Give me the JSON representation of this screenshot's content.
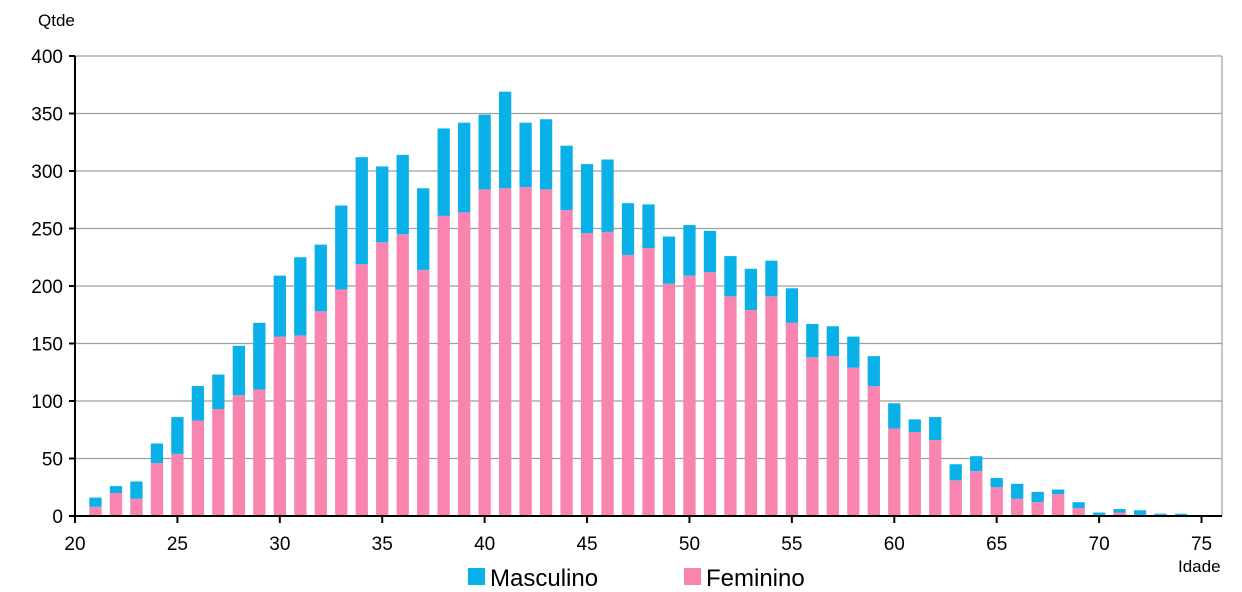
{
  "chart_data": {
    "type": "bar",
    "stacked": true,
    "title": "",
    "xlabel": "Idade",
    "ylabel": "Qtde",
    "xlim": [
      20,
      76
    ],
    "ylim": [
      0,
      400
    ],
    "x_ticks": [
      20,
      25,
      30,
      35,
      40,
      45,
      50,
      55,
      60,
      65,
      70,
      75
    ],
    "y_ticks": [
      0,
      50,
      100,
      150,
      200,
      250,
      300,
      350,
      400
    ],
    "grid": "horizontal",
    "legend_position": "bottom",
    "x": [
      21,
      22,
      23,
      24,
      25,
      26,
      27,
      28,
      29,
      30,
      31,
      32,
      33,
      34,
      35,
      36,
      37,
      38,
      39,
      40,
      41,
      42,
      43,
      44,
      45,
      46,
      47,
      48,
      49,
      50,
      51,
      52,
      53,
      54,
      55,
      56,
      57,
      58,
      59,
      60,
      61,
      62,
      63,
      64,
      65,
      66,
      67,
      68,
      69,
      70,
      71,
      72,
      73,
      74
    ],
    "series": [
      {
        "name": "Feminino",
        "color": "#F984AF",
        "values": [
          8,
          20,
          15,
          46,
          54,
          83,
          93,
          105,
          110,
          156,
          157,
          178,
          197,
          219,
          238,
          245,
          214,
          261,
          264,
          284,
          285,
          286,
          284,
          266,
          246,
          247,
          227,
          233,
          202,
          209,
          212,
          191,
          179,
          191,
          168,
          138,
          139,
          129,
          113,
          76,
          73,
          66,
          31,
          39,
          25,
          15,
          12,
          19,
          7,
          1,
          3,
          1,
          1,
          1
        ]
      },
      {
        "name": "Masculino",
        "color": "#0AB0E8",
        "values": [
          8,
          6,
          15,
          17,
          32,
          30,
          30,
          43,
          58,
          53,
          68,
          58,
          73,
          93,
          66,
          69,
          71,
          76,
          78,
          65,
          84,
          56,
          61,
          56,
          60,
          63,
          45,
          38,
          41,
          44,
          36,
          35,
          36,
          31,
          30,
          29,
          26,
          27,
          26,
          22,
          11,
          20,
          14,
          13,
          8,
          13,
          9,
          4,
          5,
          2,
          3,
          4,
          1,
          1
        ]
      }
    ],
    "legend": [
      "Masculino",
      "Feminino"
    ]
  }
}
